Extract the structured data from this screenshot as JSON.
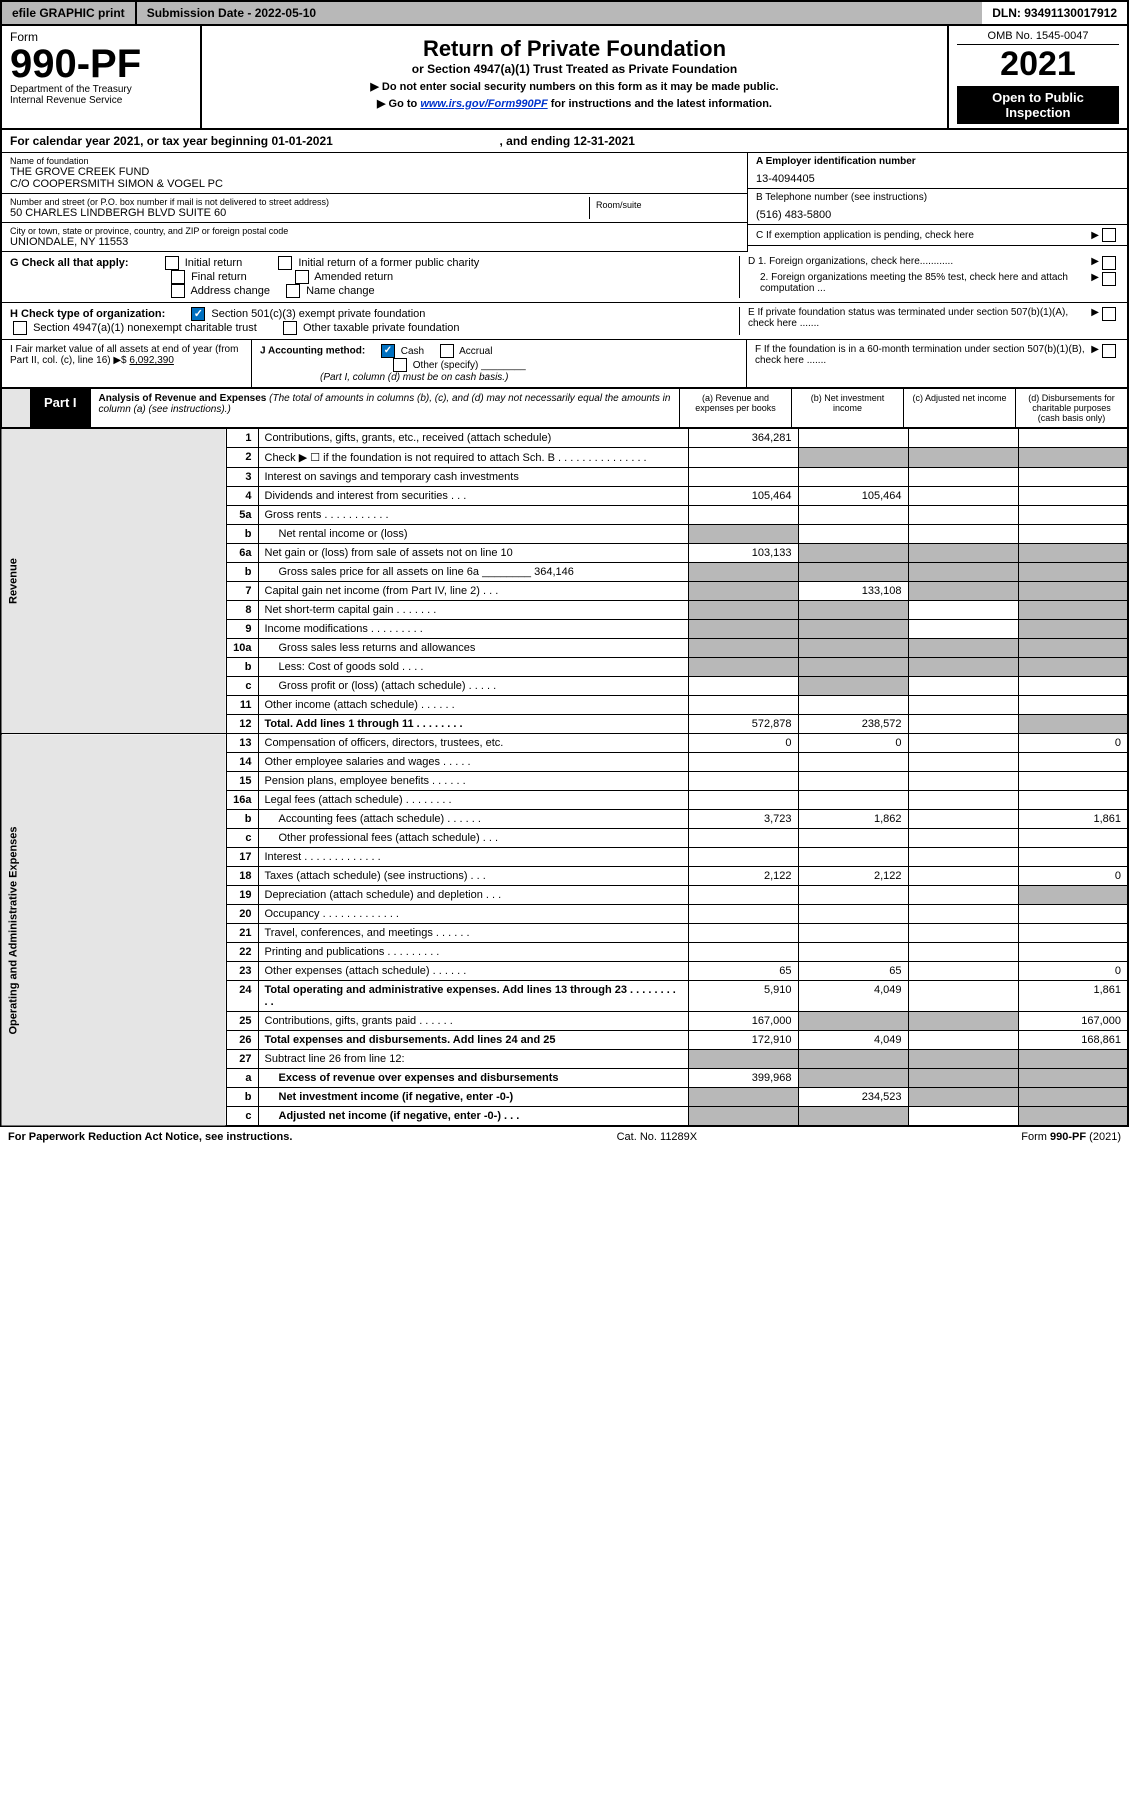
{
  "topbar": {
    "efile": "efile GRAPHIC print",
    "subdate": "Submission Date - 2022-05-10",
    "dln": "DLN: 93491130017912"
  },
  "header": {
    "form": "Form",
    "formno": "990-PF",
    "dept": "Department of the Treasury\nInternal Revenue Service",
    "title": "Return of Private Foundation",
    "subtitle": "or Section 4947(a)(1) Trust Treated as Private Foundation",
    "instr1": "▶ Do not enter social security numbers on this form as it may be made public.",
    "instr2_pre": "▶ Go to ",
    "instr2_link": "www.irs.gov/Form990PF",
    "instr2_post": " for instructions and the latest information.",
    "omb": "OMB No. 1545-0047",
    "year": "2021",
    "openpub": "Open to Public Inspection"
  },
  "cal": {
    "text": "For calendar year 2021, or tax year beginning 01-01-2021",
    "end": ", and ending 12-31-2021"
  },
  "entity": {
    "name_lbl": "Name of foundation",
    "name1": "THE GROVE CREEK FUND",
    "name2": "C/O COOPERSMITH SIMON & VOGEL PC",
    "addr_lbl": "Number and street (or P.O. box number if mail is not delivered to street address)",
    "addr": "50 CHARLES LINDBERGH BLVD SUITE 60",
    "room_lbl": "Room/suite",
    "city_lbl": "City or town, state or province, country, and ZIP or foreign postal code",
    "city": "UNIONDALE, NY  11553",
    "ein_lbl": "A Employer identification number",
    "ein": "13-4094405",
    "tel_lbl": "B Telephone number (see instructions)",
    "tel": "(516) 483-5800",
    "c_lbl": "C If exemption application is pending, check here",
    "d1": "D 1. Foreign organizations, check here............",
    "d2": "2. Foreign organizations meeting the 85% test, check here and attach computation ...",
    "e": "E  If private foundation status was terminated under section 507(b)(1)(A), check here .......",
    "f": "F  If the foundation is in a 60-month termination under section 507(b)(1)(B), check here .......",
    "g_lbl": "G Check all that apply:",
    "g_initial": "Initial return",
    "g_initial2": "Initial return of a former public charity",
    "g_final": "Final return",
    "g_amended": "Amended return",
    "g_addr": "Address change",
    "g_name": "Name change",
    "h_lbl": "H Check type of organization:",
    "h_501": "Section 501(c)(3) exempt private foundation",
    "h_4947": "Section 4947(a)(1) nonexempt charitable trust",
    "h_other": "Other taxable private foundation",
    "i_lbl": "I Fair market value of all assets at end of year (from Part II, col. (c), line 16) ▶$",
    "i_val": "6,092,390",
    "j_lbl": "J Accounting method:",
    "j_cash": "Cash",
    "j_accrual": "Accrual",
    "j_other": "Other (specify)",
    "j_note": "(Part I, column (d) must be on cash basis.)"
  },
  "part1": {
    "tab": "Part I",
    "title": "Analysis of Revenue and Expenses",
    "note": " (The total of amounts in columns (b), (c), and (d) may not necessarily equal the amounts in column (a) (see instructions).)",
    "col_a": "(a)   Revenue and expenses per books",
    "col_b": "(b)   Net investment income",
    "col_c": "(c)   Adjusted net income",
    "col_d": "(d)   Disbursements for charitable purposes (cash basis only)",
    "vlabel_rev": "Revenue",
    "vlabel_exp": "Operating and Administrative Expenses"
  },
  "rows": [
    {
      "n": "1",
      "d": "Contributions, gifts, grants, etc., received (attach schedule)",
      "a": "364,281",
      "b": "",
      "c": "",
      "ds": ""
    },
    {
      "n": "2",
      "d": "Check ▶ ☐ if the foundation is not required to attach Sch. B     .   .   .   .   .   .   .   .   .   .   .   .   .   .   .",
      "a": "",
      "b": "",
      "c": "",
      "ds": "",
      "shade_bcd": true
    },
    {
      "n": "3",
      "d": "Interest on savings and temporary cash investments",
      "a": "",
      "b": "",
      "c": "",
      "ds": ""
    },
    {
      "n": "4",
      "d": "Dividends and interest from securities     .   .   .",
      "a": "105,464",
      "b": "105,464",
      "c": "",
      "ds": ""
    },
    {
      "n": "5a",
      "d": "Gross rents     .   .   .   .   .   .   .   .   .   .   .",
      "a": "",
      "b": "",
      "c": "",
      "ds": ""
    },
    {
      "n": "b",
      "d": "Net rental income or (loss)",
      "a": "",
      "b": "",
      "c": "",
      "ds": "",
      "shade_a": true,
      "indent": true
    },
    {
      "n": "6a",
      "d": "Net gain or (loss) from sale of assets not on line 10",
      "a": "103,133",
      "b": "",
      "c": "",
      "ds": "",
      "shade_bcd": true
    },
    {
      "n": "b",
      "d": "Gross sales price for all assets on line 6a ________ 364,146",
      "a": "",
      "b": "",
      "c": "",
      "ds": "",
      "shade_all": true,
      "indent": true
    },
    {
      "n": "7",
      "d": "Capital gain net income (from Part IV, line 2)   .   .   .",
      "a": "",
      "b": "133,108",
      "c": "",
      "ds": "",
      "shade_a": true,
      "shade_cd": true
    },
    {
      "n": "8",
      "d": "Net short-term capital gain   .   .   .   .   .   .   .",
      "a": "",
      "b": "",
      "c": "",
      "ds": "",
      "shade_ab": true,
      "shade_d": true
    },
    {
      "n": "9",
      "d": "Income modifications   .   .   .   .   .   .   .   .   .",
      "a": "",
      "b": "",
      "c": "",
      "ds": "",
      "shade_ab": true,
      "shade_d": true
    },
    {
      "n": "10a",
      "d": "Gross sales less returns and allowances",
      "a": "",
      "b": "",
      "c": "",
      "ds": "",
      "shade_all": true,
      "indent": true
    },
    {
      "n": "b",
      "d": "Less: Cost of goods sold     .   .   .   .",
      "a": "",
      "b": "",
      "c": "",
      "ds": "",
      "shade_all": true,
      "indent": true
    },
    {
      "n": "c",
      "d": "Gross profit or (loss) (attach schedule)     .   .   .   .   .",
      "a": "",
      "b": "",
      "c": "",
      "ds": "",
      "shade_b": true,
      "indent": true
    },
    {
      "n": "11",
      "d": "Other income (attach schedule)     .   .   .   .   .   .",
      "a": "",
      "b": "",
      "c": "",
      "ds": ""
    },
    {
      "n": "12",
      "d": "Total. Add lines 1 through 11   .   .   .   .   .   .   .   .",
      "a": "572,878",
      "b": "238,572",
      "c": "",
      "ds": "",
      "bold": true,
      "shade_d": true
    },
    {
      "n": "13",
      "d": "Compensation of officers, directors, trustees, etc.",
      "a": "0",
      "b": "0",
      "c": "",
      "ds": "0",
      "sec": "exp"
    },
    {
      "n": "14",
      "d": "Other employee salaries and wages     .   .   .   .   .",
      "a": "",
      "b": "",
      "c": "",
      "ds": ""
    },
    {
      "n": "15",
      "d": "Pension plans, employee benefits   .   .   .   .   .   .",
      "a": "",
      "b": "",
      "c": "",
      "ds": ""
    },
    {
      "n": "16a",
      "d": "Legal fees (attach schedule)   .   .   .   .   .   .   .   .",
      "a": "",
      "b": "",
      "c": "",
      "ds": ""
    },
    {
      "n": "b",
      "d": "Accounting fees (attach schedule)   .   .   .   .   .   .",
      "a": "3,723",
      "b": "1,862",
      "c": "",
      "ds": "1,861",
      "indent": true
    },
    {
      "n": "c",
      "d": "Other professional fees (attach schedule)     .   .   .",
      "a": "",
      "b": "",
      "c": "",
      "ds": "",
      "indent": true
    },
    {
      "n": "17",
      "d": "Interest   .   .   .   .   .   .   .   .   .   .   .   .   .",
      "a": "",
      "b": "",
      "c": "",
      "ds": ""
    },
    {
      "n": "18",
      "d": "Taxes (attach schedule) (see instructions)     .   .   .",
      "a": "2,122",
      "b": "2,122",
      "c": "",
      "ds": "0"
    },
    {
      "n": "19",
      "d": "Depreciation (attach schedule) and depletion   .   .   .",
      "a": "",
      "b": "",
      "c": "",
      "ds": "",
      "shade_d": true
    },
    {
      "n": "20",
      "d": "Occupancy   .   .   .   .   .   .   .   .   .   .   .   .   .",
      "a": "",
      "b": "",
      "c": "",
      "ds": ""
    },
    {
      "n": "21",
      "d": "Travel, conferences, and meetings   .   .   .   .   .   .",
      "a": "",
      "b": "",
      "c": "",
      "ds": ""
    },
    {
      "n": "22",
      "d": "Printing and publications   .   .   .   .   .   .   .   .   .",
      "a": "",
      "b": "",
      "c": "",
      "ds": ""
    },
    {
      "n": "23",
      "d": "Other expenses (attach schedule)   .   .   .   .   .   .",
      "a": "65",
      "b": "65",
      "c": "",
      "ds": "0"
    },
    {
      "n": "24",
      "d": "Total operating and administrative expenses. Add lines 13 through 23   .   .   .   .   .   .   .   .   .   .",
      "a": "5,910",
      "b": "4,049",
      "c": "",
      "ds": "1,861",
      "bold": true
    },
    {
      "n": "25",
      "d": "Contributions, gifts, grants paid     .   .   .   .   .   .",
      "a": "167,000",
      "b": "",
      "c": "",
      "ds": "167,000",
      "shade_bc": true
    },
    {
      "n": "26",
      "d": "Total expenses and disbursements. Add lines 24 and 25",
      "a": "172,910",
      "b": "4,049",
      "c": "",
      "ds": "168,861",
      "bold": true
    },
    {
      "n": "27",
      "d": "Subtract line 26 from line 12:",
      "a": "",
      "b": "",
      "c": "",
      "ds": "",
      "shade_all": true
    },
    {
      "n": "a",
      "d": "Excess of revenue over expenses and disbursements",
      "a": "399,968",
      "b": "",
      "c": "",
      "ds": "",
      "bold": true,
      "indent": true,
      "shade_bcd": true
    },
    {
      "n": "b",
      "d": "Net investment income (if negative, enter -0-)",
      "a": "",
      "b": "234,523",
      "c": "",
      "ds": "",
      "bold": true,
      "indent": true,
      "shade_a": true,
      "shade_cd": true
    },
    {
      "n": "c",
      "d": "Adjusted net income (if negative, enter -0-)   .   .   .",
      "a": "",
      "b": "",
      "c": "",
      "ds": "",
      "bold": true,
      "indent": true,
      "shade_ab": true,
      "shade_d": true
    }
  ],
  "footer": {
    "left": "For Paperwork Reduction Act Notice, see instructions.",
    "mid": "Cat. No. 11289X",
    "right": "Form 990-PF (2021)"
  }
}
